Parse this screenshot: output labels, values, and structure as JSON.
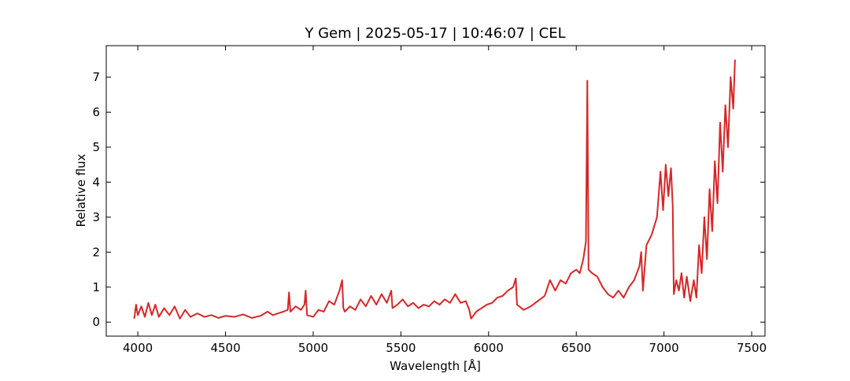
{
  "chart_data": {
    "type": "line",
    "title": "Y Gem | 2025-05-17 | 10:46:07 | CEL",
    "xlabel": "Wavelength [Å]",
    "ylabel": "Relative flux",
    "xlim": [
      3820,
      7576
    ],
    "ylim": [
      -0.4,
      7.9
    ],
    "xticks": [
      4000,
      4500,
      5000,
      5500,
      6000,
      6500,
      7000,
      7500
    ],
    "yticks": [
      0,
      1,
      2,
      3,
      4,
      5,
      6,
      7
    ],
    "grid": false,
    "x": [
      3980,
      3990,
      4000,
      4020,
      4040,
      4060,
      4080,
      4100,
      4120,
      4150,
      4180,
      4210,
      4240,
      4270,
      4300,
      4340,
      4380,
      4420,
      4460,
      4500,
      4550,
      4600,
      4650,
      4700,
      4740,
      4770,
      4800,
      4830,
      4855,
      4862,
      4870,
      4900,
      4930,
      4950,
      4957,
      4965,
      5000,
      5030,
      5060,
      5090,
      5120,
      5150,
      5165,
      5172,
      5180,
      5210,
      5240,
      5270,
      5300,
      5330,
      5360,
      5390,
      5420,
      5445,
      5452,
      5480,
      5510,
      5540,
      5570,
      5600,
      5630,
      5660,
      5690,
      5720,
      5750,
      5780,
      5810,
      5840,
      5870,
      5890,
      5900,
      5930,
      5960,
      5990,
      6020,
      6050,
      6080,
      6110,
      6140,
      6155,
      6162,
      6200,
      6240,
      6280,
      6320,
      6350,
      6380,
      6410,
      6440,
      6470,
      6500,
      6520,
      6540,
      6555,
      6563,
      6570,
      6590,
      6620,
      6650,
      6680,
      6710,
      6740,
      6770,
      6800,
      6830,
      6860,
      6870,
      6880,
      6900,
      6930,
      6960,
      6980,
      6995,
      7010,
      7025,
      7040,
      7050,
      7056,
      7070,
      7085,
      7100,
      7115,
      7130,
      7150,
      7170,
      7185,
      7200,
      7215,
      7230,
      7245,
      7260,
      7275,
      7290,
      7305,
      7320,
      7335,
      7350,
      7365,
      7380,
      7395,
      7405
    ],
    "series": [
      {
        "name": "Y Gem",
        "color": "#d62728",
        "values": [
          0.1,
          0.5,
          0.2,
          0.45,
          0.15,
          0.55,
          0.2,
          0.5,
          0.15,
          0.4,
          0.2,
          0.45,
          0.1,
          0.35,
          0.15,
          0.25,
          0.15,
          0.2,
          0.12,
          0.18,
          0.15,
          0.22,
          0.12,
          0.18,
          0.3,
          0.2,
          0.25,
          0.3,
          0.35,
          0.85,
          0.3,
          0.45,
          0.35,
          0.5,
          0.9,
          0.2,
          0.15,
          0.35,
          0.3,
          0.6,
          0.5,
          0.9,
          1.2,
          0.4,
          0.3,
          0.45,
          0.35,
          0.65,
          0.45,
          0.75,
          0.5,
          0.8,
          0.55,
          0.9,
          0.4,
          0.5,
          0.65,
          0.45,
          0.55,
          0.4,
          0.5,
          0.45,
          0.6,
          0.5,
          0.65,
          0.55,
          0.8,
          0.55,
          0.6,
          0.35,
          0.1,
          0.3,
          0.4,
          0.5,
          0.55,
          0.7,
          0.75,
          0.9,
          1.0,
          1.25,
          0.5,
          0.35,
          0.45,
          0.6,
          0.75,
          1.2,
          0.9,
          1.2,
          1.1,
          1.4,
          1.5,
          1.4,
          1.8,
          2.3,
          6.9,
          1.5,
          1.4,
          1.3,
          1.0,
          0.8,
          0.7,
          0.9,
          0.7,
          1.0,
          1.2,
          1.6,
          2.0,
          0.9,
          2.2,
          2.5,
          3.0,
          4.3,
          3.2,
          4.5,
          3.6,
          4.4,
          3.3,
          0.8,
          1.2,
          0.9,
          1.4,
          0.7,
          1.3,
          0.6,
          1.2,
          0.7,
          2.2,
          1.4,
          3.0,
          1.8,
          3.8,
          2.6,
          4.6,
          3.4,
          5.7,
          4.3,
          6.2,
          5.0,
          7.0,
          6.1,
          7.5
        ]
      }
    ]
  }
}
